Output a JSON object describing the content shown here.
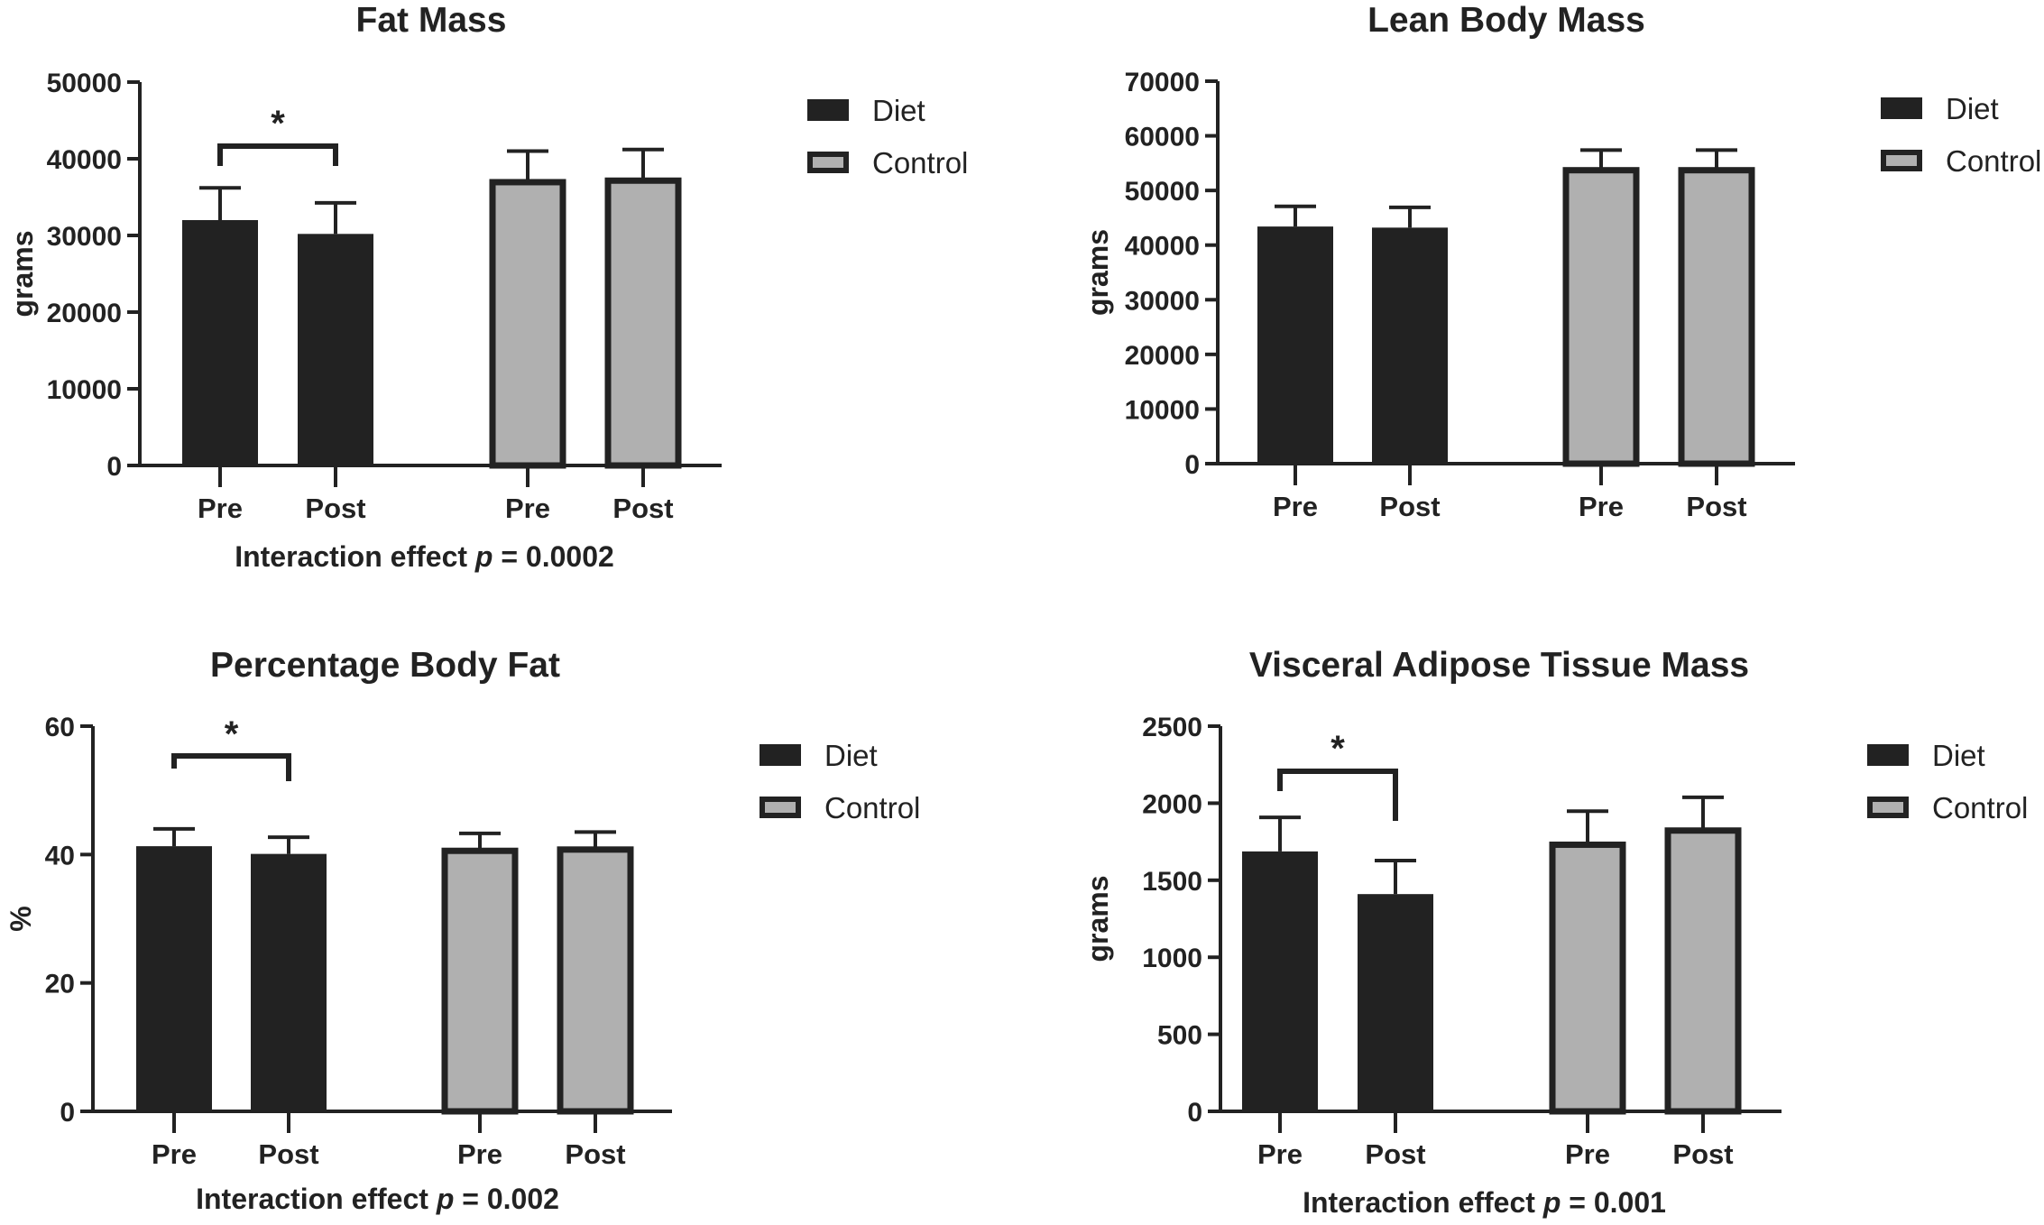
{
  "colors": {
    "diet": "#222222",
    "control": "#b0b0b0",
    "outline": "#222222"
  },
  "chart_data": [
    {
      "type": "bar",
      "title": "Fat Mass",
      "ylabel": "grams",
      "xlabel": "",
      "ylim": [
        0,
        50000
      ],
      "yticks": [
        0,
        10000,
        20000,
        30000,
        40000,
        50000
      ],
      "categories": [
        "Pre",
        "Post",
        "Pre",
        "Post"
      ],
      "legend": {
        "entries": [
          "Diet",
          "Control"
        ],
        "placement": "top-right"
      },
      "series": [
        {
          "name": "Diet",
          "values": [
            32000,
            30200
          ],
          "error": [
            4200,
            4050
          ],
          "categories": [
            "Pre",
            "Post"
          ]
        },
        {
          "name": "Control",
          "values": [
            37300,
            37500
          ],
          "error": [
            3700,
            3700
          ],
          "categories": [
            "Pre",
            "Post"
          ]
        }
      ],
      "significance": {
        "group": "Diet",
        "between": [
          "Pre",
          "Post"
        ],
        "marker": "*"
      },
      "annotation": {
        "prefix": "Interaction effect ",
        "p": "p",
        "suffix": " = 0.0002"
      }
    },
    {
      "type": "bar",
      "title": "Lean Body Mass",
      "ylabel": "grams",
      "xlabel": "",
      "ylim": [
        0,
        70000
      ],
      "yticks": [
        0,
        10000,
        20000,
        30000,
        40000,
        50000,
        60000,
        70000
      ],
      "categories": [
        "Pre",
        "Post",
        "Pre",
        "Post"
      ],
      "legend": {
        "entries": [
          "Diet",
          "Control"
        ],
        "placement": "top-right"
      },
      "series": [
        {
          "name": "Diet",
          "values": [
            43400,
            43200
          ],
          "error": [
            3700,
            3700
          ],
          "categories": [
            "Pre",
            "Post"
          ]
        },
        {
          "name": "Control",
          "values": [
            54200,
            54200
          ],
          "error": [
            3200,
            3200
          ],
          "categories": [
            "Pre",
            "Post"
          ]
        }
      ],
      "significance": null,
      "annotation": null
    },
    {
      "type": "bar",
      "title": "Percentage Body Fat",
      "ylabel": "%",
      "xlabel": "",
      "ylim": [
        0,
        60
      ],
      "yticks": [
        0,
        20,
        40,
        60
      ],
      "categories": [
        "Pre",
        "Post",
        "Pre",
        "Post"
      ],
      "legend": {
        "entries": [
          "Diet",
          "Control"
        ],
        "placement": "top-right"
      },
      "series": [
        {
          "name": "Diet",
          "values": [
            41.3,
            40.1
          ],
          "error": [
            2.7,
            2.6
          ],
          "categories": [
            "Pre",
            "Post"
          ]
        },
        {
          "name": "Control",
          "values": [
            41.0,
            41.2
          ],
          "error": [
            2.3,
            2.3
          ],
          "categories": [
            "Pre",
            "Post"
          ]
        }
      ],
      "significance": {
        "group": "Diet",
        "between": [
          "Pre",
          "Post"
        ],
        "marker": "*"
      },
      "annotation": {
        "prefix": "Interaction effect ",
        "p": "p",
        "suffix": " = 0.002"
      }
    },
    {
      "type": "bar",
      "title": "Visceral Adipose Tissue Mass",
      "ylabel": "grams",
      "xlabel": "",
      "ylim": [
        0,
        2500
      ],
      "yticks": [
        0,
        500,
        1000,
        1500,
        2000,
        2500
      ],
      "categories": [
        "Pre",
        "Post",
        "Pre",
        "Post"
      ],
      "legend": {
        "entries": [
          "Diet",
          "Control"
        ],
        "placement": "top-right"
      },
      "series": [
        {
          "name": "Diet",
          "values": [
            1687,
            1410
          ],
          "error": [
            221,
            218
          ],
          "categories": [
            "Pre",
            "Post"
          ]
        },
        {
          "name": "Control",
          "values": [
            1748,
            1840
          ],
          "error": [
            200,
            198
          ],
          "categories": [
            "Pre",
            "Post"
          ]
        }
      ],
      "significance": {
        "group": "Diet",
        "between": [
          "Pre",
          "Post"
        ],
        "marker": "*"
      },
      "annotation": {
        "prefix": "Interaction effect ",
        "p": "p",
        "suffix": " = 0.001"
      }
    }
  ]
}
